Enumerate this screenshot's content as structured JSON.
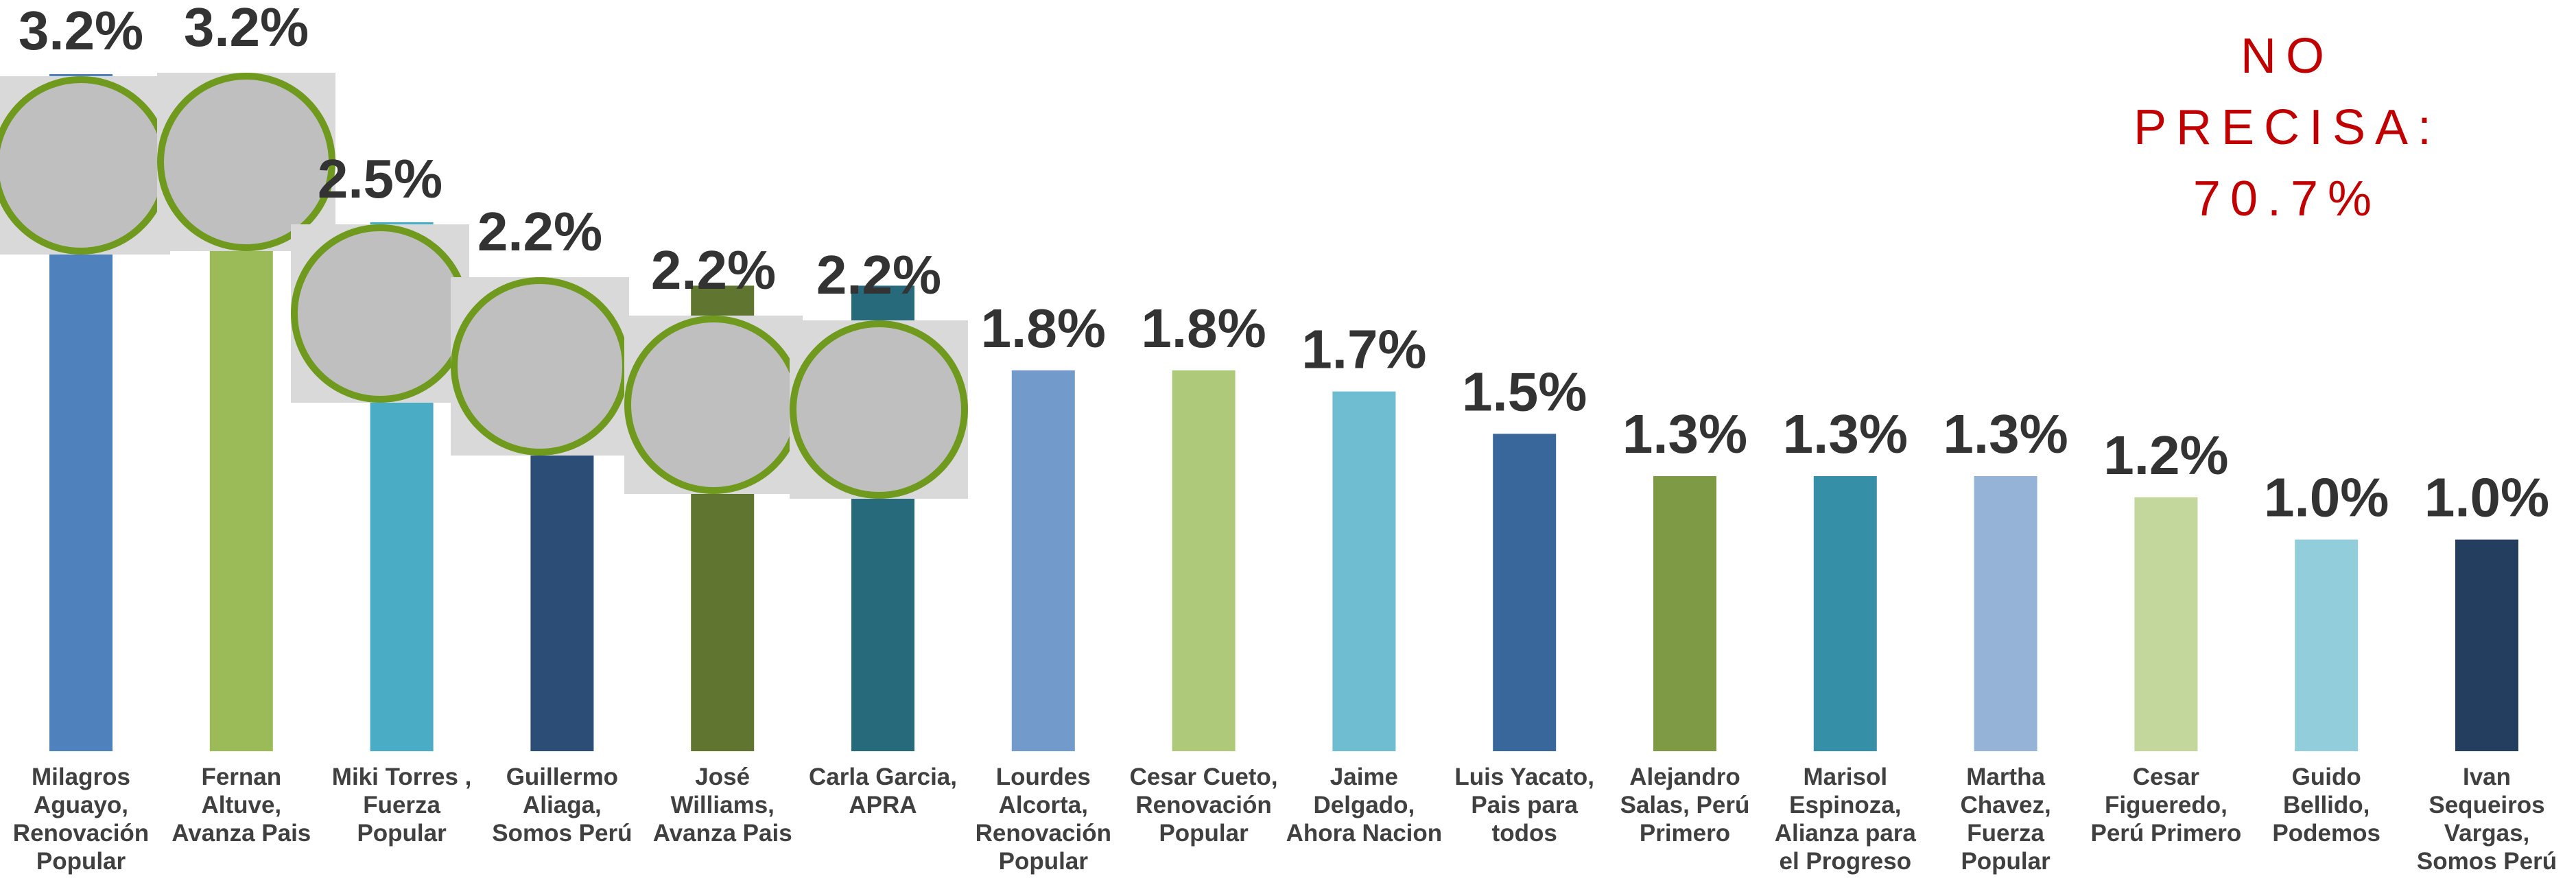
{
  "chart_data": {
    "type": "bar",
    "annotation": "NO PRECISA: 70.7%",
    "categories": [
      "Milagros Aguayo, Renovación Popular",
      "Fernan Altuve, Avanza Pais",
      "Miki Torres , Fuerza Popular",
      "Guillermo Aliaga, Somos Perú",
      "José Williams, Avanza Pais",
      "Carla Garcia, APRA",
      "Lourdes Alcorta, Renovación Popular",
      "Cesar Cueto, Renovación Popular",
      "Jaime Delgado, Ahora Nacion",
      "Luis Yacato, Pais para todos",
      "Alejandro Salas, Perú Primero",
      "Marisol Espinoza, Alianza para el Progreso",
      "Martha Chavez, Fuerza Popular",
      "Cesar Figueredo, Perú Primero",
      "Guido Bellido, Podemos",
      "Ivan Sequeiros Vargas, Somos Perú"
    ],
    "values": [
      3.2,
      3.2,
      2.5,
      2.2,
      2.2,
      2.2,
      1.8,
      1.8,
      1.7,
      1.5,
      1.3,
      1.3,
      1.3,
      1.2,
      1.0,
      1.0
    ],
    "value_labels": [
      "3.2%",
      "3.2%",
      "2.5%",
      "2.2%",
      "2.2%",
      "2.2%",
      "1.8%",
      "1.8%",
      "1.7%",
      "1.5%",
      "1.3%",
      "1.3%",
      "1.3%",
      "1.2%",
      "1.0%",
      "1.0%"
    ],
    "colors": [
      "#4f81bd",
      "#9bbb59",
      "#4bacc6",
      "#2c4d75",
      "#5f7530",
      "#276a7c",
      "#729aca",
      "#afc97a",
      "#6fbdd1",
      "#3a679b",
      "#7f9a45",
      "#358fa6",
      "#95b3d7",
      "#c3d69b",
      "#92cddc",
      "#243e5f"
    ],
    "ylim": [
      0,
      3.55
    ]
  }
}
